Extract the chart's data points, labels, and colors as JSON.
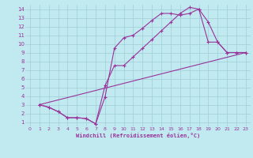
{
  "xlabel": "Windchill (Refroidissement éolien,°C)",
  "bg_color": "#c0eaf0",
  "grid_color": "#a0ccd8",
  "line_color": "#993399",
  "xlim": [
    -0.5,
    23.5
  ],
  "ylim": [
    0.5,
    14.5
  ],
  "xticks": [
    0,
    1,
    2,
    3,
    4,
    5,
    6,
    7,
    8,
    9,
    10,
    11,
    12,
    13,
    14,
    15,
    16,
    17,
    18,
    19,
    20,
    21,
    22,
    23
  ],
  "yticks": [
    1,
    2,
    3,
    4,
    5,
    6,
    7,
    8,
    9,
    10,
    11,
    12,
    13,
    14
  ],
  "line1_x": [
    1,
    2,
    3,
    4,
    5,
    6,
    7,
    8,
    9,
    10,
    11,
    12,
    13,
    14,
    15,
    16,
    17,
    18,
    19,
    20,
    21,
    22,
    23
  ],
  "line1_y": [
    3.0,
    2.7,
    2.2,
    1.5,
    1.5,
    1.4,
    0.8,
    3.9,
    9.5,
    10.7,
    11.0,
    11.8,
    12.7,
    13.5,
    13.5,
    13.3,
    13.5,
    14.0,
    10.2,
    10.2,
    9.0,
    9.0,
    9.0
  ],
  "line2_x": [
    1,
    2,
    3,
    4,
    5,
    6,
    7,
    8,
    9,
    10,
    11,
    12,
    13,
    14,
    15,
    16,
    17,
    18,
    19,
    20,
    21,
    22,
    23
  ],
  "line2_y": [
    3.0,
    2.7,
    2.2,
    1.5,
    1.5,
    1.4,
    0.8,
    5.2,
    7.5,
    7.5,
    8.5,
    9.5,
    10.5,
    11.5,
    12.5,
    13.5,
    14.2,
    14.0,
    12.5,
    10.2,
    9.0,
    9.0,
    9.0
  ],
  "line3_x": [
    1,
    23
  ],
  "line3_y": [
    3.0,
    9.0
  ]
}
